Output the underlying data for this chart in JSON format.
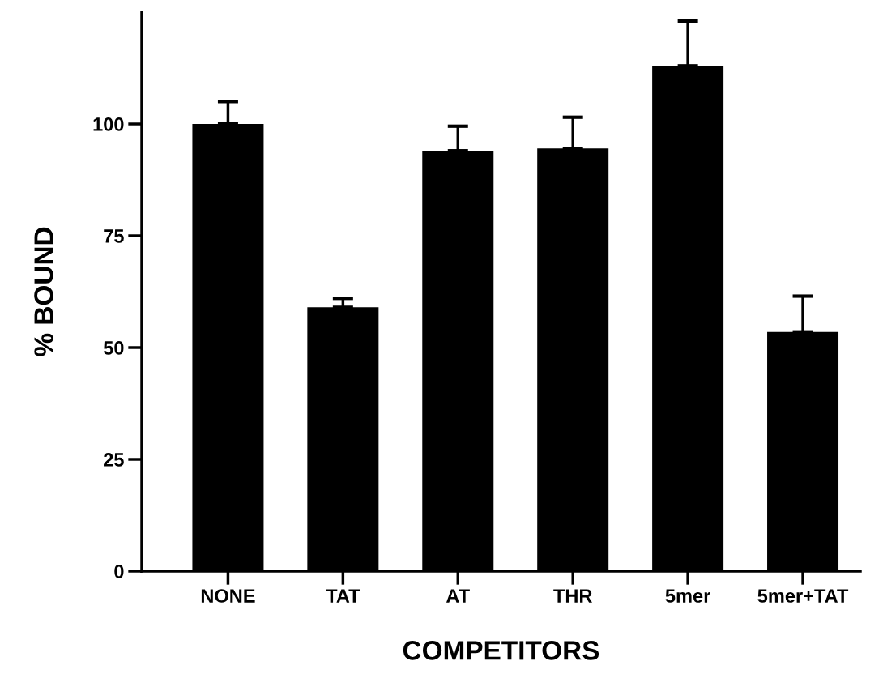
{
  "chart_data": {
    "type": "bar",
    "xlabel": "COMPETITORS",
    "ylabel": "% BOUND",
    "categories": [
      "NONE",
      "TAT",
      "AT",
      "THR",
      "5mer",
      "5mer+TAT"
    ],
    "values": [
      100,
      59,
      94,
      94.5,
      113,
      53.5
    ],
    "errors": [
      [
        100,
        105
      ],
      [
        59,
        61
      ],
      [
        94,
        99.5
      ],
      [
        94.5,
        101.5
      ],
      [
        113,
        123
      ],
      [
        53.5,
        61.5
      ]
    ],
    "color": "#000000",
    "ylim": [
      0,
      125
    ],
    "yticks": [
      0,
      25,
      50,
      75,
      100
    ],
    "grid": false,
    "legend": false
  }
}
